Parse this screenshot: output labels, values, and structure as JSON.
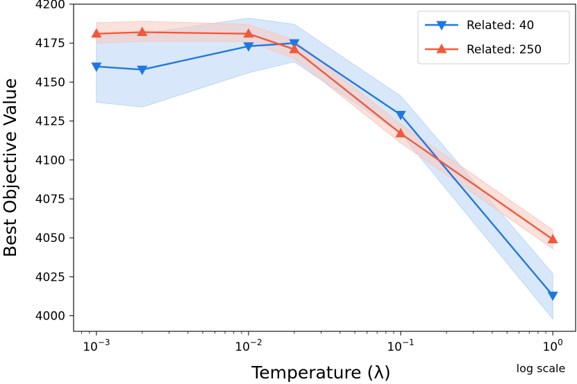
{
  "chart_data": {
    "type": "line",
    "title": "",
    "xlabel": "Temperature (λ)",
    "ylabel": "Best Objective Value",
    "xscale": "log",
    "xscale_note": "log scale",
    "xlim_exponent": [
      -3.15,
      0.15
    ],
    "ylim": [
      3990,
      4200
    ],
    "x_ticks": [
      {
        "value": 0.001,
        "base": "10",
        "exp": "−3"
      },
      {
        "value": 0.01,
        "base": "10",
        "exp": "−2"
      },
      {
        "value": 0.1,
        "base": "10",
        "exp": "−1"
      },
      {
        "value": 1,
        "base": "10",
        "exp": "0"
      }
    ],
    "y_ticks": [
      4000,
      4025,
      4050,
      4075,
      4100,
      4125,
      4150,
      4175,
      4200
    ],
    "legend_position": "top-right",
    "x": [
      0.001,
      0.002,
      0.01,
      0.02,
      0.1,
      1
    ],
    "series": [
      {
        "name": "Related: 40",
        "color": "#1f77e0",
        "band_color": "#b8d6f5",
        "marker": "triangle-down",
        "values": [
          4160,
          4158,
          4173,
          4175,
          4129,
          4013
        ],
        "lower": [
          4137,
          4134,
          4156,
          4163,
          4117,
          3998
        ],
        "upper": [
          4180,
          4181,
          4191,
          4187,
          4141,
          4027
        ]
      },
      {
        "name": "Related: 250",
        "color": "#ef5a3c",
        "band_color": "#f8c9bf",
        "marker": "triangle-up",
        "values": [
          4181,
          4182,
          4181,
          4171,
          4117,
          4049
        ],
        "lower": [
          4175,
          4176,
          4176,
          4165,
          4111,
          4043
        ],
        "upper": [
          4188,
          4189,
          4187,
          4177,
          4123,
          4055
        ]
      }
    ]
  }
}
